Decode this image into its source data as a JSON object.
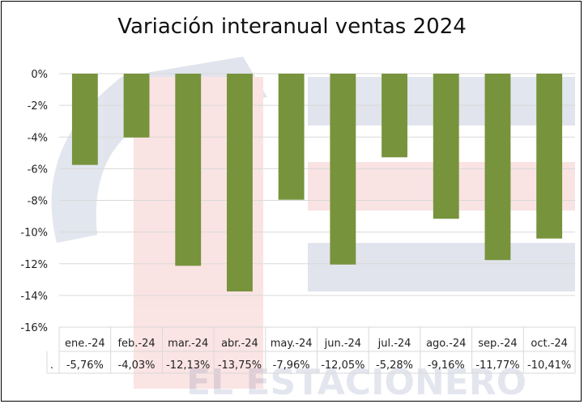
{
  "chart_data": {
    "type": "bar",
    "title": "Variación interanual ventas 2024",
    "categories": [
      "ene.-24",
      "feb.-24",
      "mar.-24",
      "abr.-24",
      "may.-24",
      "jun.-24",
      "jul.-24",
      "ago.-24",
      "sep.-24",
      "oct.-24"
    ],
    "values": [
      -5.76,
      -4.03,
      -12.13,
      -13.75,
      -7.96,
      -12.05,
      -5.28,
      -9.16,
      -11.77,
      -10.41
    ],
    "value_labels": [
      "-5,76%",
      "-4,03%",
      "-12,13%",
      "-13,75%",
      "-7,96%",
      "-12,05%",
      "-5,28%",
      "-9,16%",
      "-11,77%",
      "-10,41%"
    ],
    "ylim": [
      -16,
      0
    ],
    "yticks": [
      0,
      -2,
      -4,
      -6,
      -8,
      -10,
      -12,
      -14,
      -16
    ],
    "ytick_labels": [
      "0%",
      "-2%",
      "-4%",
      "-6%",
      "-8%",
      "-10%",
      "-12%",
      "-14%",
      "-16%"
    ],
    "table_row_label": ".",
    "grid": true,
    "bar_color": "#77933c"
  },
  "watermark": {
    "text": "EL ESTACIONERO"
  }
}
